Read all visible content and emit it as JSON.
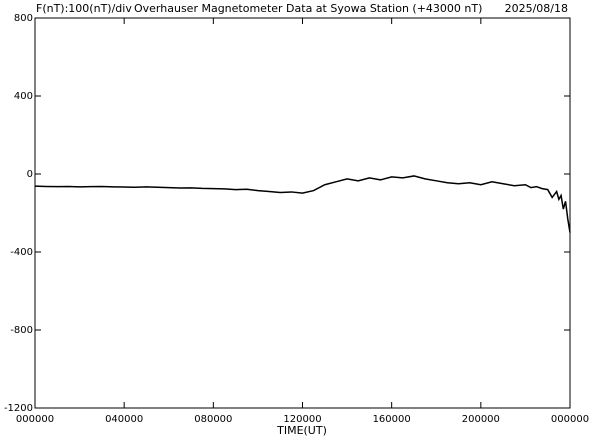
{
  "chart_data": {
    "type": "line",
    "scale_label": "F(nT):100(nT)/div",
    "title": "Overhauser Magnetometer Data at Syowa Station (+43000 nT)",
    "date": "2025/08/18",
    "x_label": "TIME(UT)",
    "xlim": [
      0,
      24
    ],
    "xticks": [
      {
        "value": 0,
        "label": "000000"
      },
      {
        "value": 4,
        "label": "040000"
      },
      {
        "value": 8,
        "label": "080000"
      },
      {
        "value": 12,
        "label": "120000"
      },
      {
        "value": 16,
        "label": "160000"
      },
      {
        "value": 20,
        "label": "200000"
      },
      {
        "value": 24,
        "label": "000000"
      }
    ],
    "ylim": [
      -1200,
      800
    ],
    "yticks": [
      -1200,
      -800,
      -400,
      0,
      400,
      800
    ],
    "x": [
      0,
      0.5,
      1,
      1.5,
      2,
      2.5,
      3,
      3.5,
      4,
      4.5,
      5,
      5.5,
      6,
      6.5,
      7,
      7.5,
      8,
      8.5,
      9,
      9.5,
      10,
      10.5,
      11,
      11.5,
      12,
      12.5,
      13,
      13.5,
      14,
      14.5,
      15,
      15.5,
      16,
      16.5,
      17,
      17.5,
      18,
      18.5,
      19,
      19.5,
      20,
      20.5,
      21,
      21.5,
      22,
      22.25,
      22.5,
      22.75,
      23,
      23.2,
      23.4,
      23.5,
      23.6,
      23.7,
      23.8,
      23.9,
      24
    ],
    "series": [
      {
        "color": "#000000",
        "values": [
          -62,
          -64,
          -65,
          -64,
          -66,
          -65,
          -64,
          -66,
          -67,
          -68,
          -66,
          -68,
          -70,
          -72,
          -71,
          -74,
          -75,
          -76,
          -80,
          -78,
          -85,
          -90,
          -95,
          -92,
          -98,
          -85,
          -55,
          -40,
          -25,
          -35,
          -20,
          -30,
          -15,
          -20,
          -10,
          -25,
          -35,
          -45,
          -50,
          -45,
          -55,
          -40,
          -50,
          -60,
          -55,
          -70,
          -65,
          -75,
          -80,
          -120,
          -90,
          -130,
          -110,
          -180,
          -140,
          -230,
          -300
        ]
      }
    ]
  }
}
